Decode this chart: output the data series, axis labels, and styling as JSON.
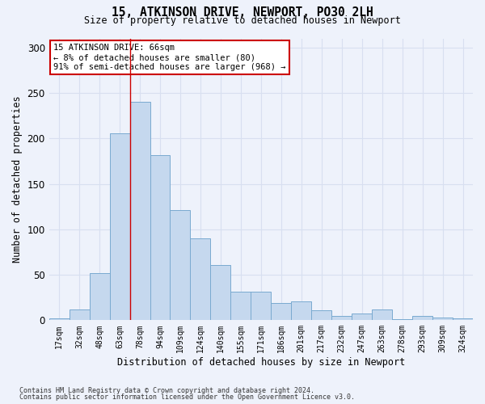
{
  "title_line1": "15, ATKINSON DRIVE, NEWPORT, PO30 2LH",
  "title_line2": "Size of property relative to detached houses in Newport",
  "xlabel": "Distribution of detached houses by size in Newport",
  "ylabel": "Number of detached properties",
  "categories": [
    "17sqm",
    "32sqm",
    "48sqm",
    "63sqm",
    "78sqm",
    "94sqm",
    "109sqm",
    "124sqm",
    "140sqm",
    "155sqm",
    "171sqm",
    "186sqm",
    "201sqm",
    "217sqm",
    "232sqm",
    "247sqm",
    "263sqm",
    "278sqm",
    "293sqm",
    "309sqm",
    "324sqm"
  ],
  "values": [
    2,
    12,
    52,
    206,
    240,
    182,
    121,
    90,
    61,
    31,
    31,
    19,
    21,
    11,
    5,
    7,
    12,
    1,
    5,
    3,
    2
  ],
  "bar_color": "#c5d8ee",
  "bar_edgecolor": "#7aaad0",
  "vline_color": "#cc0000",
  "vline_pos": 3.5,
  "annotation_text": "15 ATKINSON DRIVE: 66sqm\n← 8% of detached houses are smaller (80)\n91% of semi-detached houses are larger (968) →",
  "annotation_box_edgecolor": "#cc0000",
  "annotation_box_facecolor": "#ffffff",
  "ylim": [
    0,
    310
  ],
  "yticks": [
    0,
    50,
    100,
    150,
    200,
    250,
    300
  ],
  "footer_line1": "Contains HM Land Registry data © Crown copyright and database right 2024.",
  "footer_line2": "Contains public sector information licensed under the Open Government Licence v3.0.",
  "grid_color": "#d8dff0",
  "background_color": "#eef2fb"
}
